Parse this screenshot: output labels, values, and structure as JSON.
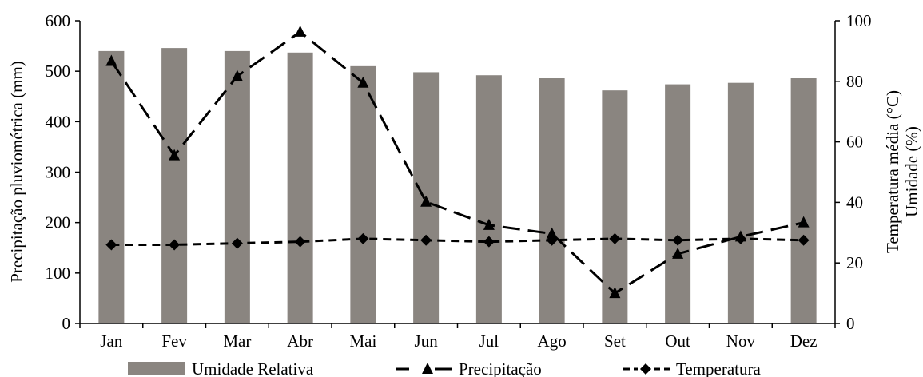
{
  "chart_data": {
    "type": "bar",
    "categories": [
      "Jan",
      "Fev",
      "Mar",
      "Abr",
      "Mai",
      "Jun",
      "Jul",
      "Ago",
      "Set",
      "Out",
      "Nov",
      "Dez"
    ],
    "series": [
      {
        "name": "Umidade Relativa",
        "type": "bar",
        "axis": "right",
        "color": "#8a8580",
        "values": [
          90,
          91,
          90,
          89.5,
          85,
          83,
          82,
          81,
          77,
          79,
          79.5,
          81
        ]
      },
      {
        "name": "Precipitação",
        "type": "line",
        "axis": "left",
        "color": "#000000",
        "marker": "triangle",
        "line_style": "long-dash",
        "values": [
          520,
          333,
          490,
          578,
          477,
          241,
          195,
          178,
          60,
          138,
          172,
          200
        ]
      },
      {
        "name": "Temperatura",
        "type": "line",
        "axis": "right",
        "color": "#000000",
        "marker": "diamond",
        "line_style": "short-dash",
        "values": [
          26,
          26,
          26.5,
          27,
          28,
          27.5,
          27,
          27.5,
          28,
          27.5,
          28,
          27.5
        ]
      }
    ],
    "ylabel": "Precipitação pluviométrica (mm)",
    "ylim": [
      0,
      600
    ],
    "yticks": [
      "0",
      "100",
      "200",
      "300",
      "400",
      "500",
      "600"
    ],
    "y2label_lines": [
      "Temperatura média (°C)",
      "Umidade (%)"
    ],
    "y2lim": [
      0,
      100
    ],
    "y2ticks": [
      "0",
      "20",
      "40",
      "60",
      "80",
      "100"
    ],
    "grid": false,
    "legend_position": "bottom"
  }
}
